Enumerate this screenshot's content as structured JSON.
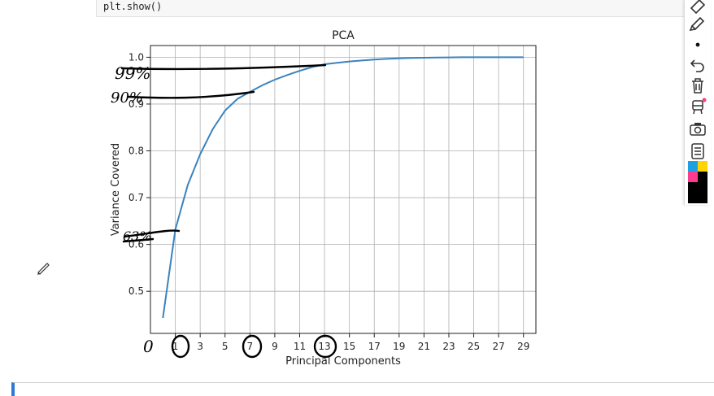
{
  "code_cell": {
    "text": "plt.show()"
  },
  "toolbar": {
    "tools": [
      "eraser-icon",
      "pen-icon",
      "dot-size-icon",
      "undo-icon",
      "trash-icon",
      "highlighter-icon",
      "camera-icon",
      "clipboard-icon",
      "color-palette-icon"
    ],
    "palette": [
      "#1ba1e2",
      "#ffd400",
      "#ff3b8d",
      "#000000"
    ]
  },
  "chart_data": {
    "type": "line",
    "title": "PCA",
    "xlabel": "Principal Components",
    "ylabel": "Variance Covered",
    "xlim": [
      -1,
      30
    ],
    "ylim": [
      0.41,
      1.025
    ],
    "xticks": [
      1,
      3,
      5,
      7,
      9,
      11,
      13,
      15,
      17,
      19,
      21,
      23,
      25,
      27,
      29
    ],
    "yticks": [
      0.5,
      0.6,
      0.7,
      0.8,
      0.9,
      1.0
    ],
    "grid": true,
    "x": [
      0,
      1,
      2,
      3,
      4,
      5,
      6,
      7,
      8,
      9,
      10,
      11,
      12,
      13,
      14,
      15,
      16,
      17,
      18,
      19,
      20,
      21,
      22,
      23,
      24,
      25,
      26,
      27,
      28,
      29
    ],
    "series": [
      {
        "color": "#3b83bd",
        "values": [
          0.443,
          0.632,
          0.727,
          0.793,
          0.846,
          0.886,
          0.911,
          0.926,
          0.94,
          0.952,
          0.962,
          0.971,
          0.979,
          0.985,
          0.988,
          0.991,
          0.993,
          0.995,
          0.9965,
          0.9975,
          0.9985,
          0.999,
          0.9994,
          0.9997,
          0.9999,
          1.0,
          1.0,
          1.0,
          1.0,
          1.0
        ]
      }
    ],
    "annotations": {
      "handwritten": [
        "99%",
        "90%",
        "63%",
        "0"
      ],
      "circled_ticks": [
        "1",
        "7",
        "13"
      ]
    }
  }
}
